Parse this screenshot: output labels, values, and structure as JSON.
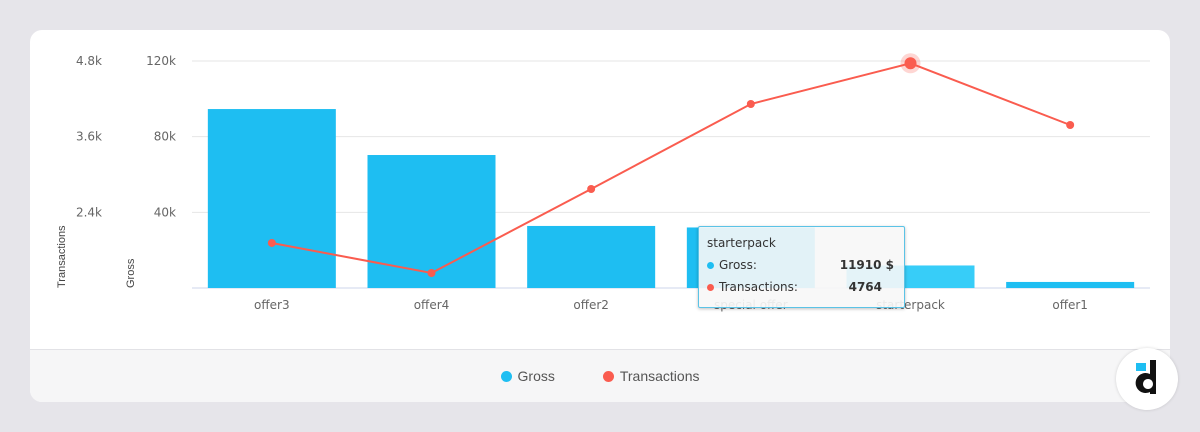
{
  "chart_data": {
    "type": "bar",
    "categories": [
      "offer3",
      "offer4",
      "offer2",
      "special offer",
      "starterpack",
      "offer1"
    ],
    "series": [
      {
        "name": "Gross",
        "type": "bar",
        "axis": "left-inner",
        "values": [
          94600,
          70300,
          32800,
          32000,
          11910,
          3200
        ]
      },
      {
        "name": "Transactions",
        "type": "line",
        "axis": "left-outer",
        "values": [
          1914,
          1438,
          2770,
          4118,
          4764,
          3785
        ]
      }
    ],
    "y_axes": [
      {
        "label": "Transactions",
        "ylim": [
          1200,
          4800
        ],
        "ticks": [
          "2.4k",
          "3.6k",
          "4.8k"
        ],
        "tick_values": [
          2400,
          3600,
          4800
        ]
      },
      {
        "label": "Gross",
        "ylim": [
          0,
          120000
        ],
        "ticks": [
          "40k",
          "80k",
          "120k"
        ],
        "tick_values": [
          40000,
          80000,
          120000
        ]
      }
    ],
    "grid": true,
    "legend_placement": "bottom",
    "colors": {
      "Gross": "#1ebef2",
      "Transactions": "#fa5c4f",
      "highlight_bar": "#37cdf8"
    }
  },
  "tooltip": {
    "title": "starterpack",
    "rows": [
      {
        "label": "Gross:",
        "value": "11910 $",
        "color": "#1ebef2"
      },
      {
        "label": "Transactions:",
        "value": "4764",
        "color": "#fa5c4f"
      }
    ]
  },
  "legend": [
    {
      "label": "Gross",
      "color": "#1ebef2"
    },
    {
      "label": "Transactions",
      "color": "#fa5c4f"
    }
  ],
  "logo": {
    "name": "devtodev-logo-icon"
  }
}
